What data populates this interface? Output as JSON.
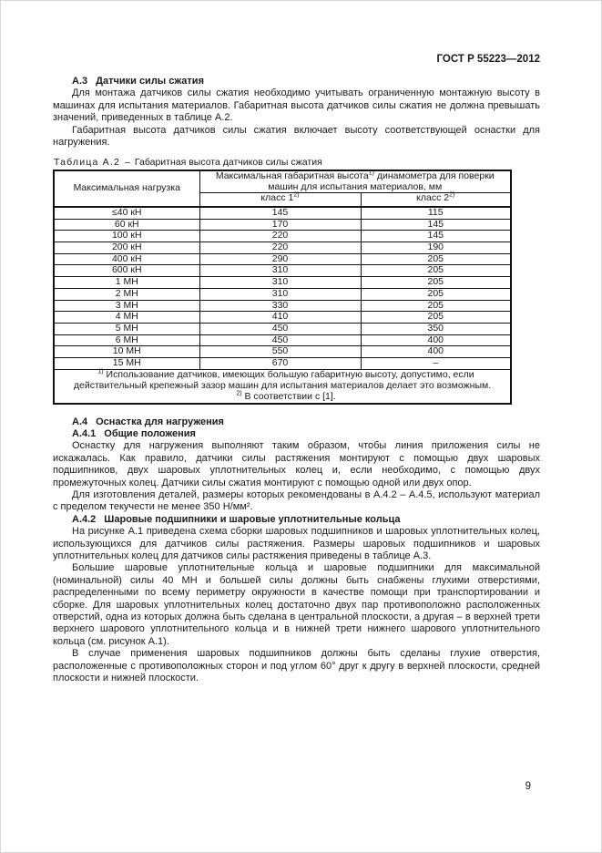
{
  "doc_header": "ГОСТ Р 55223—2012",
  "page_number": "9",
  "section_a3": {
    "num": "А.3",
    "title": "Датчики силы сжатия",
    "p1": "Для монтажа датчиков силы сжатия необходимо учитывать ограниченную монтажную высоту в машинах для испытания материалов. Габаритная высота датчиков силы сжатия не должна превышать значений, приведенных в таблице А.2.",
    "p2": "Габаритная высота датчиков силы сжатия включает высоту соответствующей оснастки для нагружения."
  },
  "table_a2": {
    "caption_label": "Таблица А.2",
    "caption_dash": "–",
    "caption_title": "Габаритная высота датчиков силы сжатия",
    "col1_header": "Максимальная нагрузка",
    "col2_header_part1": "Максимальная габаритная высота",
    "col2_header_sup": "1)",
    "col2_header_part2": " динамометра для поверки машин для испытания материалов, мм",
    "class1_label": "класс 1",
    "class1_sup": "2)",
    "class2_label": "класс 2",
    "class2_sup": "2)",
    "rows": [
      {
        "load": "≤40 кН",
        "c1": "145",
        "c2": "115"
      },
      {
        "load": "60 кН",
        "c1": "170",
        "c2": "145"
      },
      {
        "load": "100 кН",
        "c1": "220",
        "c2": "145"
      },
      {
        "load": "200 кН",
        "c1": "220",
        "c2": "190"
      },
      {
        "load": "400 кН",
        "c1": "290",
        "c2": "205"
      },
      {
        "load": "600 кН",
        "c1": "310",
        "c2": "205"
      },
      {
        "load": "1 МН",
        "c1": "310",
        "c2": "205"
      },
      {
        "load": "2 МН",
        "c1": "310",
        "c2": "205"
      },
      {
        "load": "3 МН",
        "c1": "330",
        "c2": "205"
      },
      {
        "load": "4 МН",
        "c1": "410",
        "c2": "205"
      },
      {
        "load": "5 МН",
        "c1": "450",
        "c2": "350"
      },
      {
        "load": "6 МН",
        "c1": "450",
        "c2": "400"
      },
      {
        "load": "10 МН",
        "c1": "550",
        "c2": "400"
      },
      {
        "load": "15 МН",
        "c1": "670",
        "c2": "–"
      }
    ],
    "footnote1_sup": "1)",
    "footnote1_text": "Использование датчиков, имеющих большую габаритную высоту, допустимо, если действительный крепежный зазор машин для испытания материалов делает это возможным.",
    "footnote2_sup": "2)",
    "footnote2_text": "В соответствии с [1]."
  },
  "section_a4": {
    "num": "А.4",
    "title": "Оснастка для нагружения",
    "a41_num": "А.4.1",
    "a41_title": "Общие положения",
    "a41_p1": "Оснастку для нагружения выполняют таким образом, чтобы линия приложения силы не искажалась. Как правило, датчики силы растяжения монтируют с помощью двух шаровых подшипников, двух шаровых уплотнительных колец и, если необходимо, с помощью двух промежуточных колец. Датчики силы сжатия монтируют с помощью одной или двух опор.",
    "a41_p2": "Для изготовления деталей, размеры которых рекомендованы в А.4.2 – А.4.5, используют материал с пределом текучести не менее 350 Н/мм².",
    "a42_num": "А.4.2",
    "a42_title": "Шаровые подшипники и шаровые уплотнительные кольца",
    "a42_p1": "На рисунке А.1 приведена схема сборки шаровых подшипников и шаровых уплотнительных колец, использующихся для датчиков силы растяжения. Размеры шаровых подшипников и шаровых уплотнительных колец для датчиков силы растяжения приведены в таблице А.3.",
    "a42_p2": "Большие шаровые уплотнительные кольца и шаровые подшипники для максимальной (номинальной) силы 40 МН и большей силы должны быть снабжены глухими отверстиями, распределенными по всему периметру окружности в качестве помощи при транспортировании и сборке. Для шаровых уплотнительных колец достаточно двух пар противоположно расположенных отверстий, одна из которых должна быть сделана в центральной плоскости, а другая – в верхней трети верхнего шарового уплотнительного кольца и в нижней трети нижнего шарового уплотнительного кольца (см. рисунок А.1).",
    "a42_p3": "В случае применения шаровых подшипников должны быть сделаны глухие отверстия, расположенные с противоположных сторон и под углом 60° друг к другу в верхней плоскости, средней плоскости и нижней плоскости."
  }
}
